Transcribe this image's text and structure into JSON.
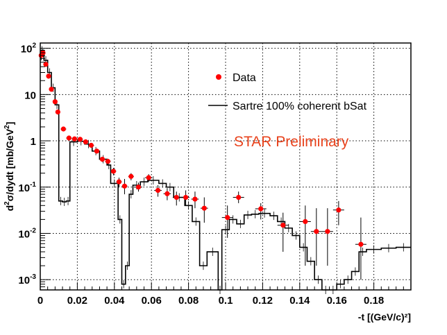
{
  "chart_data": {
    "type": "scatter",
    "xlabel": "-t [(GeV/c)²]",
    "ylabel_parts": [
      "d",
      "2",
      "σ/dydt [mb/GeV",
      "2",
      "]"
    ],
    "xlim": [
      0,
      0.2
    ],
    "ylim": [
      0.0006,
      130
    ],
    "yscale": "log",
    "grid": true,
    "x_tick_labels": [
      "0",
      "0.02",
      "0.04",
      "0.06",
      "0.08",
      "0.1",
      "0.12",
      "0.14",
      "0.16",
      "0.18"
    ],
    "y_tick_labels": [
      {
        "base": "10",
        "exp": "-3",
        "value": 0.001
      },
      {
        "base": "10",
        "exp": "-2",
        "value": 0.01
      },
      {
        "base": "10",
        "exp": "-1",
        "value": 0.1
      },
      {
        "base": "1",
        "exp": "",
        "value": 1
      },
      {
        "base": "10",
        "exp": "",
        "value": 10
      },
      {
        "base": "10",
        "exp": "2",
        "value": 100
      }
    ],
    "legend": {
      "placement": "top-right",
      "entries": [
        {
          "label": "Data",
          "kind": "marker",
          "color": "#ff0000"
        },
        {
          "label": "Sartre 100% coherent bSat",
          "kind": "line",
          "color": "#000000"
        }
      ]
    },
    "annotation": {
      "text": "STAR Preliminary",
      "color": "#e8421c"
    },
    "series": [
      {
        "kind": "points",
        "color": "#ff0000",
        "points": [
          {
            "x": 0.0005,
            "y": 70,
            "xerr": 0.0005,
            "ylo": 55,
            "yhi": 90
          },
          {
            "x": 0.0015,
            "y": 80,
            "xerr": 0.0005,
            "ylo": 70,
            "yhi": 95
          },
          {
            "x": 0.003,
            "y": 45,
            "xerr": 0.0007,
            "ylo": 40,
            "yhi": 52
          },
          {
            "x": 0.0045,
            "y": 25,
            "xerr": 0.0007,
            "ylo": 22,
            "yhi": 28
          },
          {
            "x": 0.006,
            "y": 13,
            "xerr": 0.0007,
            "ylo": 11.5,
            "yhi": 14.5
          },
          {
            "x": 0.008,
            "y": 7,
            "xerr": 0.001,
            "ylo": 6.2,
            "yhi": 7.8
          },
          {
            "x": 0.0095,
            "y": 4.2,
            "xerr": 0.001,
            "ylo": 3.7,
            "yhi": 4.7
          },
          {
            "x": 0.0125,
            "y": 1.8,
            "xerr": 0.0015,
            "ylo": 1.6,
            "yhi": 2.0
          },
          {
            "x": 0.0155,
            "y": 1.15,
            "xerr": 0.0015,
            "ylo": 1.05,
            "yhi": 1.25
          },
          {
            "x": 0.0185,
            "y": 1.1,
            "xerr": 0.0015,
            "ylo": 1.0,
            "yhi": 1.2
          },
          {
            "x": 0.0215,
            "y": 1.08,
            "xerr": 0.0015,
            "ylo": 1.0,
            "yhi": 1.16
          },
          {
            "x": 0.0245,
            "y": 0.95,
            "xerr": 0.0015,
            "ylo": 0.87,
            "yhi": 1.03
          },
          {
            "x": 0.0275,
            "y": 0.8,
            "xerr": 0.0015,
            "ylo": 0.72,
            "yhi": 0.88
          },
          {
            "x": 0.0305,
            "y": 0.6,
            "xerr": 0.0015,
            "ylo": 0.54,
            "yhi": 0.66
          },
          {
            "x": 0.0335,
            "y": 0.4,
            "xerr": 0.0015,
            "ylo": 0.35,
            "yhi": 0.45
          },
          {
            "x": 0.0365,
            "y": 0.36,
            "xerr": 0.0015,
            "ylo": 0.31,
            "yhi": 0.41
          },
          {
            "x": 0.0395,
            "y": 0.22,
            "xerr": 0.0015,
            "ylo": 0.18,
            "yhi": 0.26
          },
          {
            "x": 0.0425,
            "y": 0.13,
            "xerr": 0.0015,
            "ylo": 0.1,
            "yhi": 0.16
          },
          {
            "x": 0.0455,
            "y": 0.105,
            "xerr": 0.0015,
            "ylo": 0.07,
            "yhi": 0.15
          },
          {
            "x": 0.049,
            "y": 0.17,
            "xerr": 0.0015,
            "ylo": 0.14,
            "yhi": 0.2
          },
          {
            "x": 0.053,
            "y": 0.1,
            "xerr": 0.002,
            "ylo": 0.08,
            "yhi": 0.125
          },
          {
            "x": 0.0585,
            "y": 0.16,
            "xerr": 0.002,
            "ylo": 0.13,
            "yhi": 0.19
          },
          {
            "x": 0.0635,
            "y": 0.085,
            "xerr": 0.002,
            "ylo": 0.062,
            "yhi": 0.11
          },
          {
            "x": 0.0685,
            "y": 0.072,
            "xerr": 0.002,
            "ylo": 0.052,
            "yhi": 0.095
          },
          {
            "x": 0.0735,
            "y": 0.06,
            "xerr": 0.002,
            "ylo": 0.04,
            "yhi": 0.08
          },
          {
            "x": 0.0785,
            "y": 0.06,
            "xerr": 0.002,
            "ylo": 0.04,
            "yhi": 0.085
          },
          {
            "x": 0.0835,
            "y": 0.055,
            "xerr": 0.002,
            "ylo": 0.035,
            "yhi": 0.08
          },
          {
            "x": 0.0885,
            "y": 0.035,
            "xerr": 0.002,
            "ylo": 0.017,
            "yhi": 0.06
          },
          {
            "x": 0.101,
            "y": 0.022,
            "xerr": 0.003,
            "ylo": 0.008,
            "yhi": 0.04
          },
          {
            "x": 0.107,
            "y": 0.06,
            "xerr": 0.003,
            "ylo": 0.045,
            "yhi": 0.08
          },
          {
            "x": 0.119,
            "y": 0.034,
            "xerr": 0.003,
            "ylo": 0.02,
            "yhi": 0.045
          },
          {
            "x": 0.131,
            "y": 0.015,
            "xerr": 0.003,
            "ylo": 0.004,
            "yhi": 0.028
          },
          {
            "x": 0.143,
            "y": 0.018,
            "xerr": 0.003,
            "ylo": 0.002,
            "yhi": 0.04
          },
          {
            "x": 0.149,
            "y": 0.011,
            "xerr": 0.003,
            "ylo": 0.002,
            "yhi": 0.035
          },
          {
            "x": 0.155,
            "y": 0.011,
            "xerr": 0.003,
            "ylo": 0.002,
            "yhi": 0.035
          },
          {
            "x": 0.161,
            "y": 0.032,
            "xerr": 0.003,
            "ylo": 0.015,
            "yhi": 0.05
          },
          {
            "x": 0.173,
            "y": 0.0058,
            "xerr": 0.003,
            "ylo": 0.001,
            "yhi": 0.022
          }
        ]
      },
      {
        "kind": "step",
        "color": "#000000",
        "bins": [
          [
            0.0,
            0.002,
            90
          ],
          [
            0.002,
            0.004,
            55
          ],
          [
            0.004,
            0.006,
            30
          ],
          [
            0.006,
            0.008,
            14
          ],
          [
            0.008,
            0.01,
            6
          ],
          [
            0.01,
            0.012,
            0.05
          ],
          [
            0.012,
            0.014,
            0.048
          ],
          [
            0.014,
            0.016,
            0.05
          ],
          [
            0.016,
            0.02,
            0.95
          ],
          [
            0.02,
            0.024,
            0.98
          ],
          [
            0.024,
            0.028,
            0.85
          ],
          [
            0.028,
            0.032,
            0.6
          ],
          [
            0.032,
            0.036,
            0.4
          ],
          [
            0.036,
            0.038,
            0.3
          ],
          [
            0.038,
            0.042,
            0.12
          ],
          [
            0.042,
            0.044,
            0.02
          ],
          [
            0.044,
            0.046,
            0.0008
          ],
          [
            0.046,
            0.048,
            0.002
          ],
          [
            0.048,
            0.05,
            0.07
          ],
          [
            0.05,
            0.054,
            0.11
          ],
          [
            0.054,
            0.058,
            0.13
          ],
          [
            0.058,
            0.064,
            0.14
          ],
          [
            0.064,
            0.068,
            0.12
          ],
          [
            0.068,
            0.072,
            0.1
          ],
          [
            0.072,
            0.078,
            0.06
          ],
          [
            0.078,
            0.082,
            0.04
          ],
          [
            0.082,
            0.086,
            0.018
          ],
          [
            0.086,
            0.09,
            0.002
          ],
          [
            0.09,
            0.096,
            0.004
          ],
          [
            0.096,
            0.098,
            0.0006
          ],
          [
            0.098,
            0.102,
            0.012
          ],
          [
            0.102,
            0.106,
            0.02
          ],
          [
            0.106,
            0.11,
            0.016
          ],
          [
            0.11,
            0.114,
            0.025
          ],
          [
            0.114,
            0.118,
            0.026
          ],
          [
            0.118,
            0.124,
            0.027
          ],
          [
            0.124,
            0.128,
            0.024
          ],
          [
            0.128,
            0.132,
            0.018
          ],
          [
            0.132,
            0.136,
            0.013
          ],
          [
            0.136,
            0.14,
            0.009
          ],
          [
            0.14,
            0.144,
            0.005
          ],
          [
            0.144,
            0.148,
            0.0025
          ],
          [
            0.148,
            0.152,
            0.001
          ],
          [
            0.152,
            0.156,
            0.0005
          ],
          [
            0.156,
            0.16,
            0.0006
          ],
          [
            0.16,
            0.164,
            0.0008
          ],
          [
            0.164,
            0.168,
            0.001
          ],
          [
            0.168,
            0.172,
            0.0015
          ],
          [
            0.172,
            0.176,
            0.004
          ],
          [
            0.176,
            0.184,
            0.0045
          ],
          [
            0.184,
            0.192,
            0.0048
          ],
          [
            0.192,
            0.2,
            0.005
          ]
        ]
      }
    ]
  }
}
